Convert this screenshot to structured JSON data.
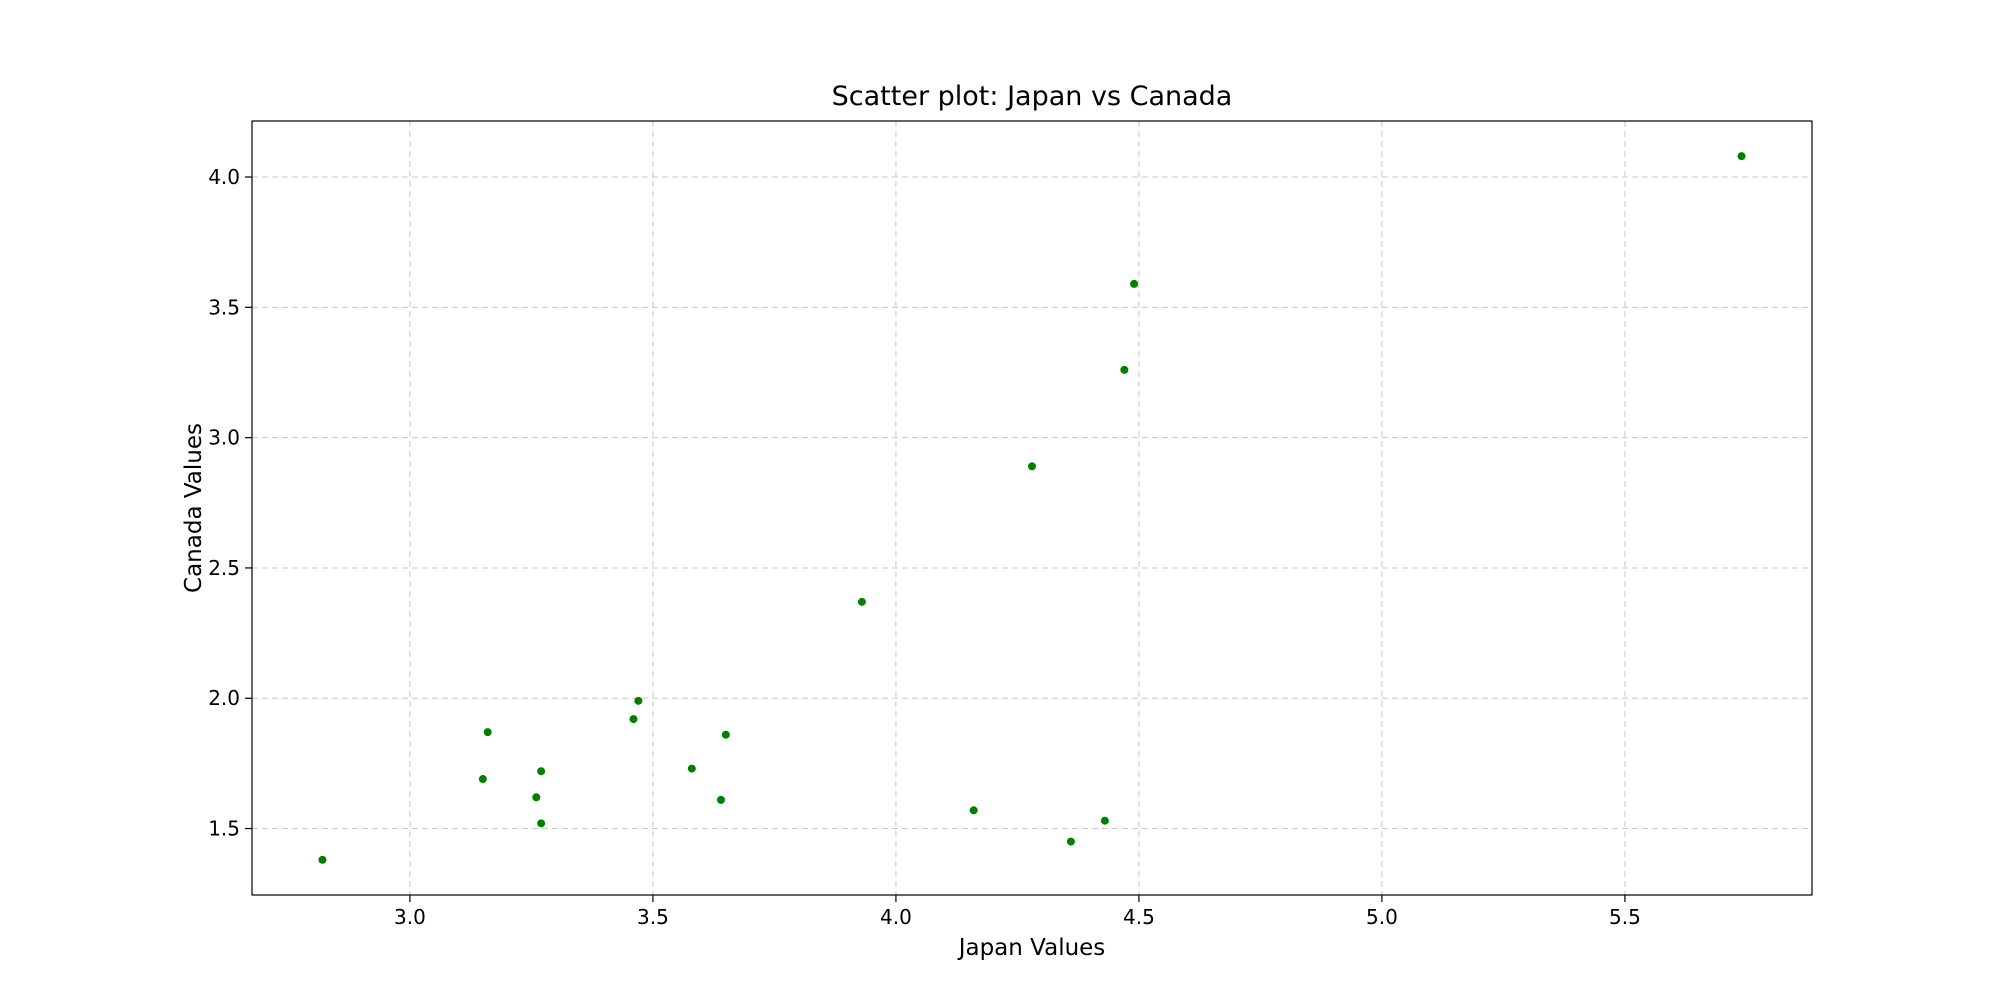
{
  "chart_data": {
    "type": "scatter",
    "title": "Scatter plot: Japan vs Canada",
    "xlabel": "Japan Values",
    "ylabel": "Canada Values",
    "xlim": [
      2.675,
      5.885
    ],
    "ylim": [
      1.245,
      4.215
    ],
    "xticks": [
      3.0,
      3.5,
      4.0,
      4.5,
      5.0,
      5.5
    ],
    "yticks": [
      1.5,
      2.0,
      2.5,
      3.0,
      3.5,
      4.0
    ],
    "grid": true,
    "marker_color": "#008000",
    "points": [
      {
        "x": 2.82,
        "y": 1.38
      },
      {
        "x": 3.15,
        "y": 1.69
      },
      {
        "x": 3.16,
        "y": 1.87
      },
      {
        "x": 3.26,
        "y": 1.62
      },
      {
        "x": 3.27,
        "y": 1.72
      },
      {
        "x": 3.27,
        "y": 1.52
      },
      {
        "x": 3.46,
        "y": 1.92
      },
      {
        "x": 3.47,
        "y": 1.99
      },
      {
        "x": 3.58,
        "y": 1.73
      },
      {
        "x": 3.64,
        "y": 1.61
      },
      {
        "x": 3.65,
        "y": 1.86
      },
      {
        "x": 3.93,
        "y": 2.37
      },
      {
        "x": 4.16,
        "y": 1.57
      },
      {
        "x": 4.28,
        "y": 2.89
      },
      {
        "x": 4.36,
        "y": 1.45
      },
      {
        "x": 4.43,
        "y": 1.53
      },
      {
        "x": 4.47,
        "y": 3.26
      },
      {
        "x": 4.49,
        "y": 3.59
      },
      {
        "x": 5.74,
        "y": 4.08
      }
    ]
  }
}
